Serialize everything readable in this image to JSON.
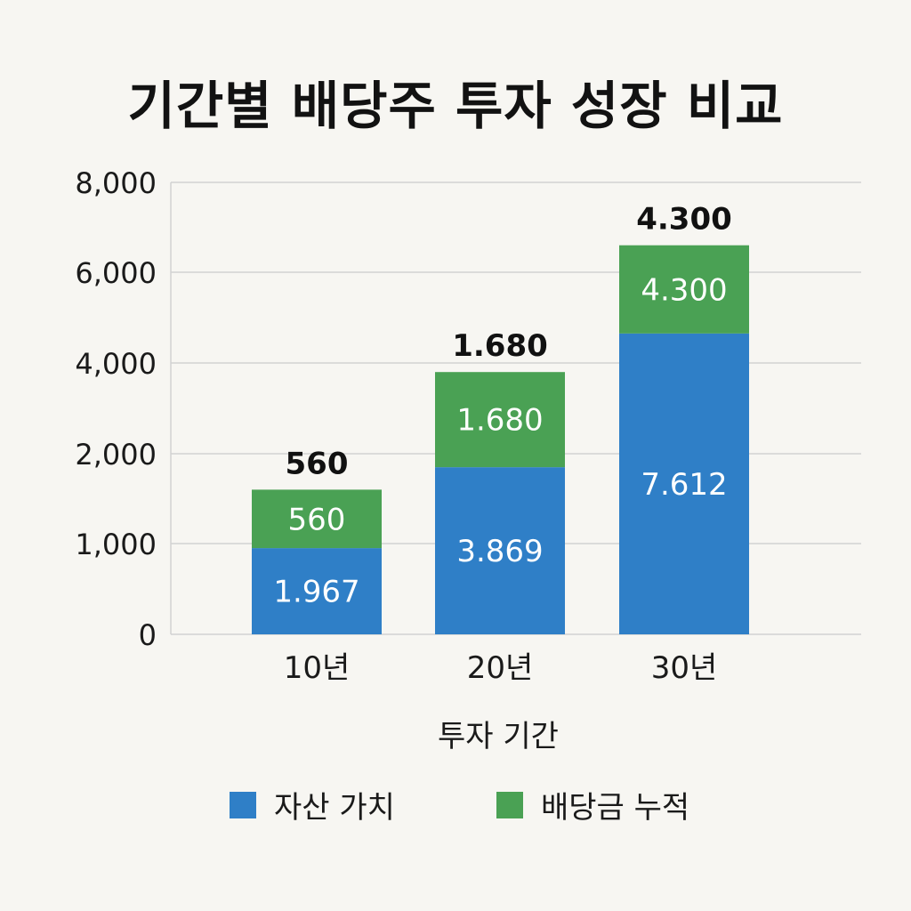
{
  "title": "기간별 배당주 투자 성장 비교",
  "colors": {
    "asset": "#2f7fc7",
    "dividend": "#4aa154",
    "grid": "#d2d2d2",
    "background": "#f7f6f2"
  },
  "chart_data": {
    "type": "bar",
    "stacked": true,
    "title": "기간별 배당주 투자 성장 비교",
    "xlabel": "투자 기간",
    "ylabel": "",
    "categories": [
      "10년",
      "20년",
      "30년"
    ],
    "y_ticks": [
      {
        "label": "0",
        "value": 0
      },
      {
        "label": "1,000",
        "value": 1000
      },
      {
        "label": "2,000",
        "value": 2000
      },
      {
        "label": "4,000",
        "value": 4000
      },
      {
        "label": "6,000",
        "value": 6000
      },
      {
        "label": "8,000",
        "value": 8000
      }
    ],
    "series": [
      {
        "name": "자산 가치",
        "color": "#2f7fc7",
        "labels": [
          "1.967",
          "3.869",
          "7.612"
        ]
      },
      {
        "name": "배당금 누적",
        "color": "#4aa154",
        "labels": [
          "560",
          "1.680",
          "4.300"
        ]
      }
    ],
    "bar_tops": [
      1600,
      3800,
      6600
    ],
    "segment_boundary": [
      950,
      1850,
      4650
    ],
    "total_labels": [
      "560",
      "1.680",
      "4.300"
    ],
    "grid": true,
    "legend_position": "bottom"
  }
}
